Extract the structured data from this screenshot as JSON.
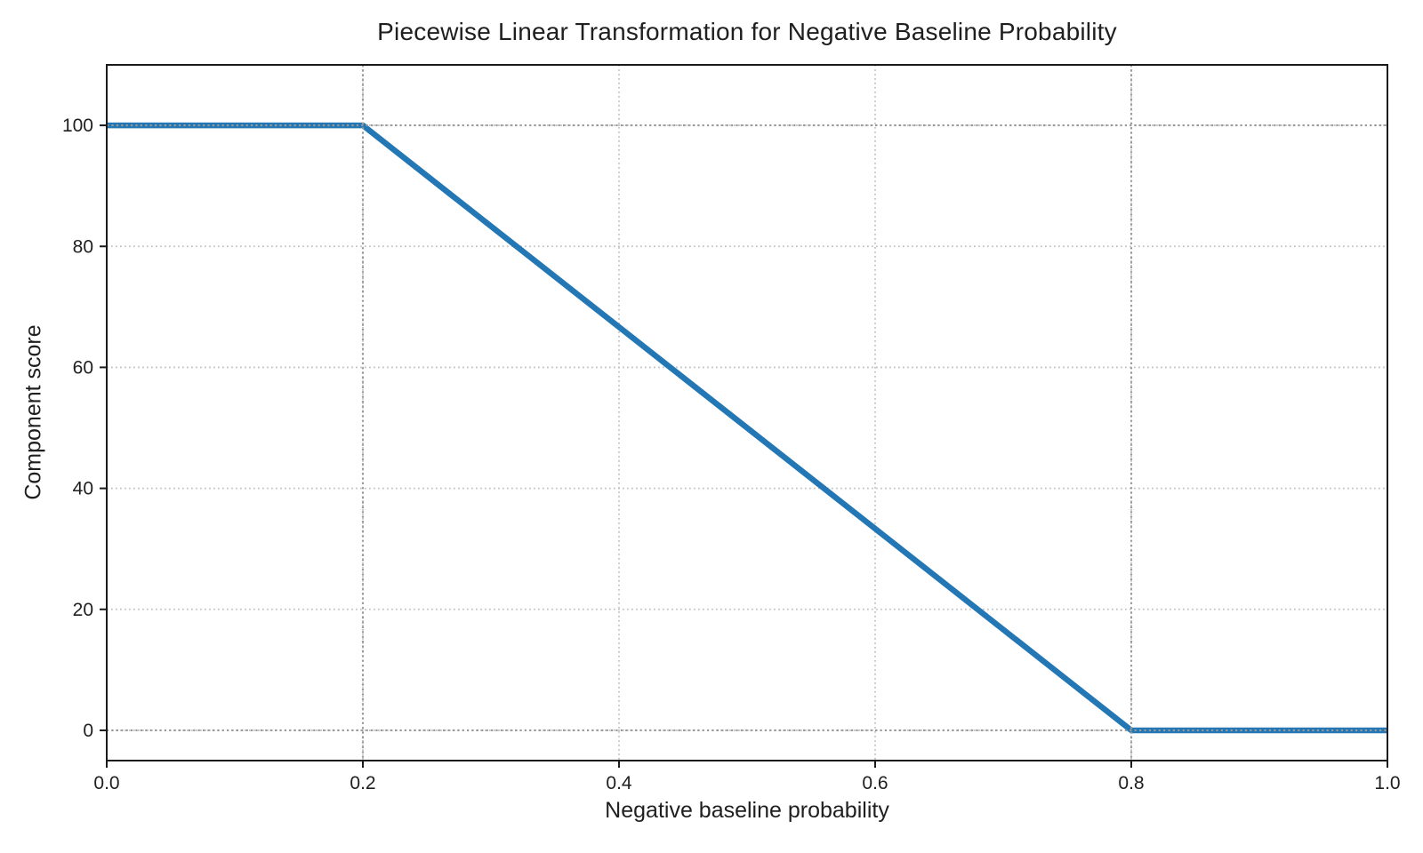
{
  "figure": {
    "background": "#ffffff"
  },
  "chart_data": {
    "type": "line",
    "title": "Piecewise Linear Transformation for Negative Baseline Probability",
    "xlabel": "Negative baseline probability",
    "ylabel": "Component score",
    "series": [
      {
        "name": "component-score-line",
        "x": [
          0.0,
          0.2,
          0.8,
          1.0
        ],
        "y": [
          100,
          100,
          0,
          0
        ],
        "color": "#2277b4",
        "line_width": 6.5
      }
    ],
    "piecewise_breakpoints": {
      "x": [
        0.2,
        0.8
      ],
      "y": [
        100,
        0
      ]
    },
    "xlim": [
      0.0,
      1.0
    ],
    "ylim": [
      -5,
      110
    ],
    "xticks": [
      0.0,
      0.2,
      0.4,
      0.6,
      0.8,
      1.0
    ],
    "xtick_labels": [
      "0.0",
      "0.2",
      "0.4",
      "0.6",
      "0.8",
      "1.0"
    ],
    "yticks": [
      0,
      20,
      40,
      60,
      80,
      100
    ],
    "ytick_labels": [
      "0",
      "20",
      "40",
      "60",
      "80",
      "100"
    ],
    "grid": {
      "visible": true,
      "style": "dotted",
      "color": "#c3c3c3"
    },
    "reference_lines": {
      "x": [
        0.2,
        0.8
      ],
      "y": [
        0,
        100
      ],
      "style": "dotted",
      "color": "#9a9a9a"
    },
    "legend": null,
    "axis_color": "#1a1a1a",
    "tick_label_color": "#1f1f1f",
    "tick_font_size": 21
  }
}
